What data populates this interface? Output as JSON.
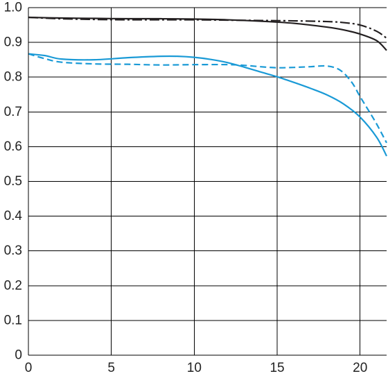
{
  "chart_data": {
    "type": "line",
    "xlim": [
      0,
      21.6
    ],
    "ylim": [
      0,
      1.0
    ],
    "x_ticks": [
      "0",
      "5",
      "10",
      "15",
      "20"
    ],
    "y_ticks": [
      "0",
      "0.1",
      "0.2",
      "0.3",
      "0.4",
      "0.5",
      "0.6",
      "0.7",
      "0.8",
      "0.9",
      "1.0"
    ],
    "grid": true,
    "legend": "none",
    "series": [
      {
        "color": "#231f20",
        "style": "solid",
        "x": [
          0,
          2,
          4,
          6,
          8,
          10,
          12,
          14,
          16,
          18,
          19,
          20,
          21,
          21.6
        ],
        "y": [
          0.972,
          0.97,
          0.969,
          0.968,
          0.968,
          0.967,
          0.965,
          0.961,
          0.955,
          0.944,
          0.936,
          0.924,
          0.905,
          0.877
        ]
      },
      {
        "color": "#231f20",
        "style": "dashdot",
        "x": [
          0,
          2,
          4,
          6,
          8,
          10,
          12,
          14,
          16,
          18,
          19,
          20,
          21,
          21.6
        ],
        "y": [
          0.972,
          0.968,
          0.966,
          0.965,
          0.965,
          0.965,
          0.964,
          0.963,
          0.962,
          0.96,
          0.957,
          0.95,
          0.932,
          0.912
        ]
      },
      {
        "color": "#1a9ad6",
        "style": "solid",
        "x": [
          0,
          1,
          2,
          4,
          6,
          8,
          9,
          10,
          11,
          12,
          13,
          14,
          15,
          16,
          17,
          18,
          19,
          20,
          21,
          21.6
        ],
        "y": [
          0.867,
          0.862,
          0.852,
          0.85,
          0.856,
          0.86,
          0.86,
          0.857,
          0.851,
          0.842,
          0.829,
          0.815,
          0.801,
          0.785,
          0.768,
          0.749,
          0.723,
          0.685,
          0.627,
          0.573
        ]
      },
      {
        "color": "#1a9ad6",
        "style": "dashed",
        "x": [
          0,
          1,
          2,
          4,
          6,
          8,
          10,
          12,
          13,
          14,
          15,
          16,
          17,
          18,
          18.8,
          19.5,
          20,
          20.5,
          21,
          21.6
        ],
        "y": [
          0.867,
          0.853,
          0.843,
          0.838,
          0.837,
          0.835,
          0.836,
          0.836,
          0.834,
          0.83,
          0.827,
          0.828,
          0.83,
          0.832,
          0.82,
          0.785,
          0.744,
          0.705,
          0.665,
          0.611
        ]
      }
    ]
  }
}
